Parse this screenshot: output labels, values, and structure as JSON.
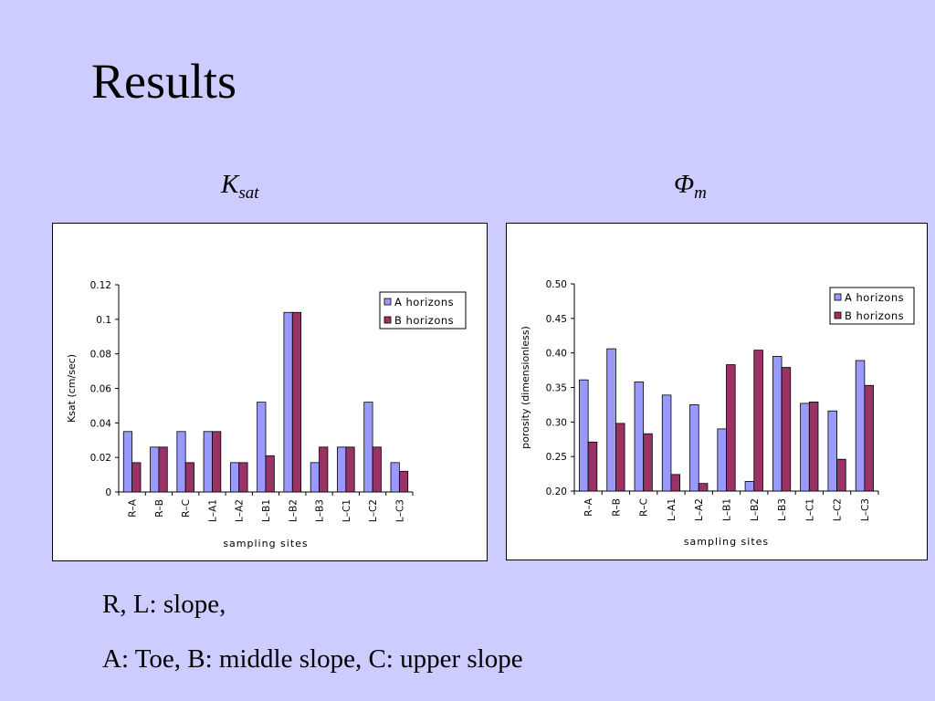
{
  "slide": {
    "title": "Results",
    "headings": [
      {
        "main": "K",
        "sub": "sat"
      },
      {
        "main": "Φ",
        "sub": "m"
      }
    ],
    "notes": [
      "R, L: slope,",
      "A: Toe, B: middle slope, C: upper slope"
    ]
  },
  "colors": {
    "series_a": "#9999ff",
    "series_b": "#993366",
    "background": "#ccccff"
  },
  "chart_data": [
    {
      "type": "bar",
      "categories": [
        "R–A",
        "R–B",
        "R–C",
        "L–A1",
        "L–A2",
        "L–B1",
        "L–B2",
        "L–B3",
        "L–C1",
        "L–C2",
        "L–C3"
      ],
      "series": [
        {
          "name": "A horizons",
          "values": [
            0.035,
            0.026,
            0.035,
            0.035,
            0.017,
            0.052,
            0.104,
            0.017,
            0.026,
            0.052,
            0.017
          ]
        },
        {
          "name": "B horizons",
          "values": [
            0.017,
            0.026,
            0.017,
            0.035,
            0.017,
            0.021,
            0.104,
            0.026,
            0.026,
            0.026,
            0.012
          ]
        }
      ],
      "yticks": [
        "0",
        "0.02",
        "0.04",
        "0.06",
        "0.08",
        "0.1",
        "0.12"
      ],
      "ylim": [
        0,
        0.12
      ],
      "xlabel": "sampling sites",
      "ylabel": "Ksat (cm/sec)",
      "legend": "top-right",
      "grid": false
    },
    {
      "type": "bar",
      "categories": [
        "R–A",
        "R–B",
        "R–C",
        "L–A1",
        "L–A2",
        "L–B1",
        "L–B2",
        "L–B3",
        "L–C1",
        "L–C2",
        "L–C3"
      ],
      "series": [
        {
          "name": "A horizons",
          "values": [
            0.361,
            0.406,
            0.358,
            0.339,
            0.325,
            0.29,
            0.214,
            0.395,
            0.327,
            0.316,
            0.389
          ]
        },
        {
          "name": "B horizons",
          "values": [
            0.271,
            0.298,
            0.283,
            0.224,
            0.211,
            0.383,
            0.404,
            0.379,
            0.329,
            0.246,
            0.353
          ]
        }
      ],
      "yticks": [
        "0.20",
        "0.25",
        "0.30",
        "0.35",
        "0.40",
        "0.45",
        "0.50"
      ],
      "ylim": [
        0.2,
        0.5
      ],
      "xlabel": "sampling sites",
      "ylabel": "porosity (dimensionless)",
      "legend": "top-right",
      "grid": false
    }
  ]
}
